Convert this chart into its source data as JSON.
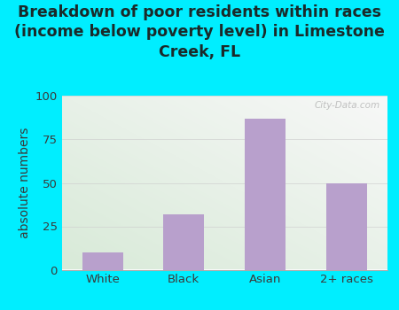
{
  "title": "Breakdown of poor residents within races\n(income below poverty level) in Limestone\nCreek, FL",
  "categories": [
    "White",
    "Black",
    "Asian",
    "2+ races"
  ],
  "values": [
    10,
    32,
    87,
    50
  ],
  "bar_color": "#b8a0cc",
  "ylabel": "absolute numbers",
  "ylim": [
    0,
    100
  ],
  "yticks": [
    0,
    25,
    50,
    75,
    100
  ],
  "background_outer": "#00eeff",
  "grid_color": "#cccccc",
  "title_color": "#1a2a2a",
  "axis_label_color": "#3a3a3a",
  "tick_label_color": "#3a3a3a",
  "watermark": "City-Data.com",
  "title_fontsize": 12.5,
  "ylabel_fontsize": 10,
  "bg_top_right": "#f8f8f8",
  "bg_bottom_left": "#d8ead8"
}
